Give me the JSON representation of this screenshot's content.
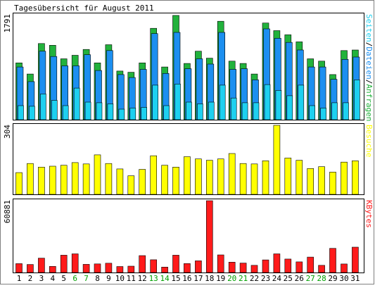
{
  "chart_data": {
    "type": "bar",
    "title": "Tagesübersicht für August 2011",
    "days": [
      "1",
      "2",
      "3",
      "4",
      "5",
      "6",
      "7",
      "8",
      "9",
      "10",
      "11",
      "12",
      "13",
      "14",
      "15",
      "16",
      "17",
      "18",
      "19",
      "20",
      "21",
      "22",
      "23",
      "24",
      "25",
      "26",
      "27",
      "28",
      "29",
      "30",
      "31"
    ],
    "weekend_days": [
      "6",
      "7",
      "13",
      "14",
      "20",
      "21",
      "27",
      "28"
    ],
    "colors": {
      "weekday_label": "#000000",
      "weekend_label": "#00a000",
      "hits": "#22b23c",
      "files": "#1c8ff0",
      "pages": "#1ed0f0",
      "visits": "#ffff00",
      "kbytes": "#ff1b1b"
    },
    "panels": [
      {
        "id": "traffic",
        "max_label": "1791",
        "ymax": 1791,
        "legend": {
          "parts": [
            "Seiten",
            "Dateien",
            "Anfragen"
          ],
          "separator": "/",
          "colors": [
            "#1ed0f0",
            "#1c8ff0",
            "#22b23c"
          ]
        },
        "series": [
          {
            "name": "Anfragen",
            "color": "#22b23c",
            "values": [
              970,
              780,
              1300,
              1270,
              1040,
              1100,
              1200,
              970,
              1280,
              830,
              810,
              970,
              1560,
              900,
              1780,
              960,
              1170,
              1050,
              1680,
              1000,
              960,
              780,
              1650,
              1520,
              1450,
              1330,
              1040,
              1000,
              770,
              1180,
              1190
            ]
          },
          {
            "name": "Dateien",
            "color": "#1c8ff0",
            "values": [
              900,
              650,
              1170,
              1080,
              920,
              920,
              1110,
              840,
              1180,
              770,
              720,
              860,
              1470,
              790,
              1490,
              870,
              1040,
              950,
              1490,
              860,
              870,
              680,
              1550,
              1390,
              1320,
              1190,
              900,
              900,
              690,
              1030,
              1070
            ]
          },
          {
            "name": "Seiten",
            "color": "#1ed0f0",
            "values": [
              240,
              230,
              440,
              330,
              240,
              540,
              300,
              290,
              270,
              180,
              200,
              210,
              590,
              240,
              610,
              300,
              270,
              300,
              590,
              370,
              290,
              290,
              600,
              500,
              410,
              590,
              240,
              200,
              290,
              290,
              680
            ]
          }
        ]
      },
      {
        "id": "visits",
        "max_label": "304",
        "ymax": 304,
        "legend": {
          "parts": [
            "Besuche"
          ],
          "separator": "",
          "colors": [
            "#ffff00"
          ]
        },
        "series": [
          {
            "name": "Besuche",
            "color": "#ffff00",
            "values": [
              96,
              136,
              120,
              124,
              128,
              140,
              134,
              174,
              136,
              112,
              82,
              110,
              170,
              128,
              120,
              166,
              156,
              150,
              156,
              180,
              136,
              134,
              148,
              304,
              160,
              150,
              114,
              122,
              98,
              142,
              148
            ]
          }
        ]
      },
      {
        "id": "kbytes",
        "max_label": "60881",
        "ymax": 60881,
        "legend": {
          "parts": [
            "KBytes"
          ],
          "separator": "",
          "colors": [
            "#ff1b1b"
          ]
        },
        "series": [
          {
            "name": "KBytes",
            "color": "#ff1b1b",
            "values": [
              7500,
              6800,
              12200,
              5200,
              14700,
              15800,
              6900,
              7300,
              7900,
              5100,
              5400,
              14300,
              10800,
              4600,
              14700,
              7600,
              9900,
              60881,
              14900,
              8800,
              8000,
              6100,
              10700,
              15800,
              11400,
              9000,
              13100,
              6100,
              20500,
              7200,
              21500
            ]
          }
        ]
      }
    ]
  }
}
